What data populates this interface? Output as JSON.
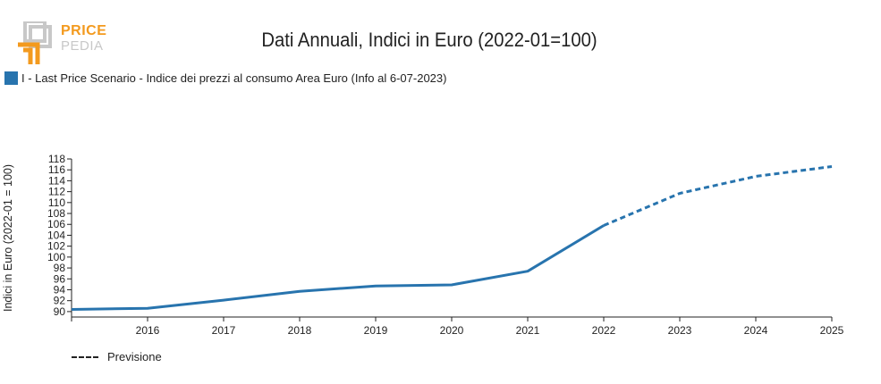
{
  "logo": {
    "line1": "PRICE",
    "line2": "PEDIA"
  },
  "title": "Dati Annuali, Indici in Euro (2022-01=100)",
  "legend": {
    "label": "I - Last Price Scenario - Indice dei prezzi al consumo Area Euro (Info al 6-07-2023)"
  },
  "note": {
    "label": "Previsione"
  },
  "colors": {
    "series": "#2874ae",
    "logo_orange": "#f39a1e",
    "logo_gray": "#c8c8c8"
  },
  "chart_data": {
    "type": "line",
    "title": "Dati Annuali, Indici in Euro (2022-01=100)",
    "xlabel": "",
    "ylabel": "Indici in Euro (2022-01 = 100)",
    "x": [
      2015,
      2016,
      2017,
      2018,
      2019,
      2020,
      2021,
      2022,
      2023,
      2024,
      2025
    ],
    "x_tick_labels": [
      "2016",
      "2017",
      "2018",
      "2019",
      "2020",
      "2021",
      "2022",
      "2023",
      "2024",
      "2025"
    ],
    "y_ticks": [
      90,
      92,
      94,
      96,
      98,
      100,
      102,
      104,
      106,
      108,
      110,
      112,
      114,
      116,
      118
    ],
    "ylim": [
      89,
      118
    ],
    "xlim": [
      2015,
      2025
    ],
    "series": [
      {
        "name": "I - Last Price Scenario - Indice dei prezzi al consumo Area Euro (Info al 6-07-2023)",
        "values": [
          90.4,
          90.6,
          92.1,
          93.7,
          94.7,
          94.9,
          97.4,
          105.8,
          111.7,
          114.8,
          116.6
        ],
        "forecast_from": 2022
      }
    ],
    "grid": false,
    "legend_position": "top-left"
  }
}
